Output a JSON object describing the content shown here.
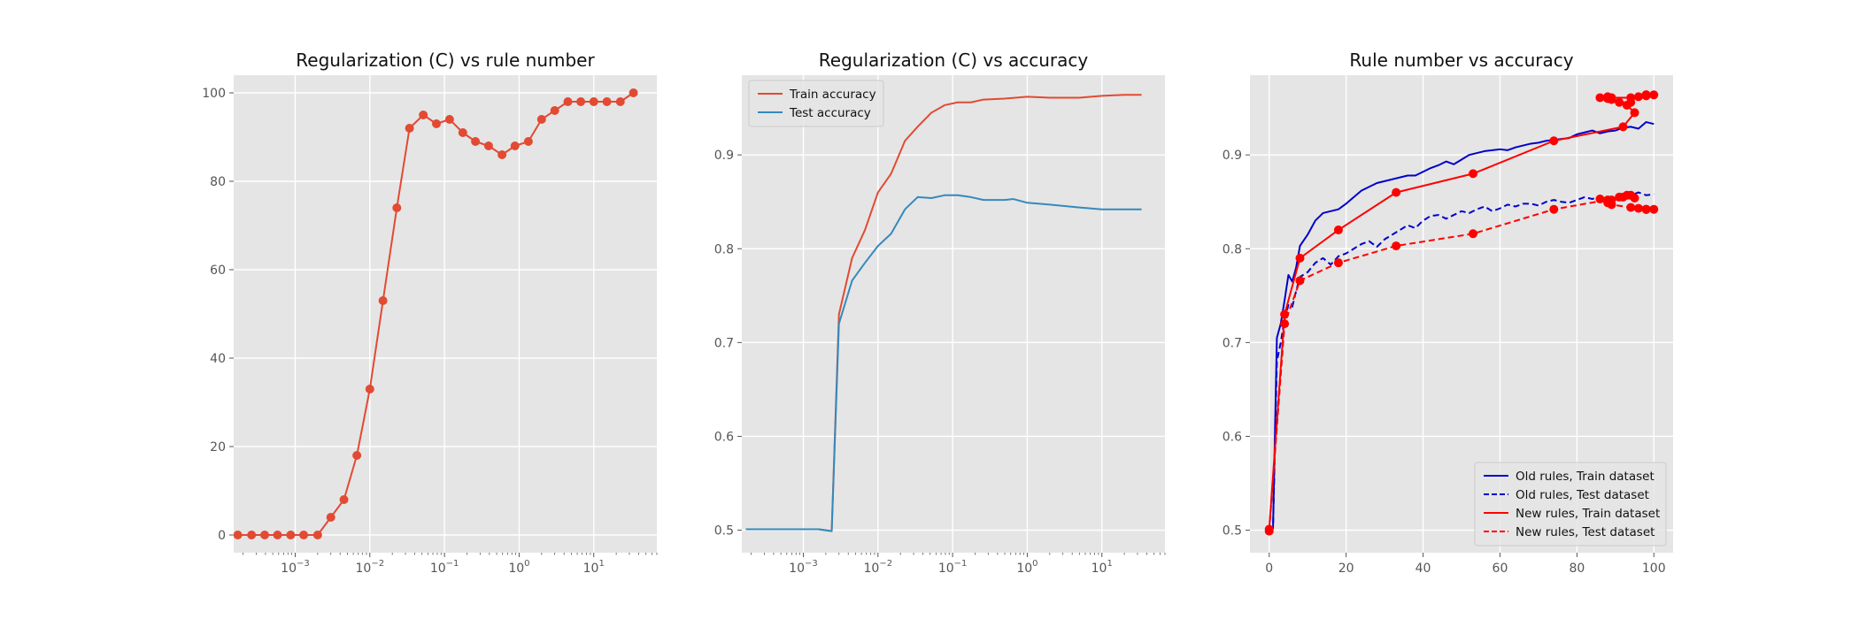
{
  "chart_data": [
    {
      "type": "line",
      "title": "Regularization (C) vs rule number",
      "xlabel": "",
      "ylabel": "",
      "xscale": "log",
      "x_ticks": [
        "10",
        "10",
        "10",
        "10",
        "10"
      ],
      "x_tick_exps": [
        "−3",
        "−2",
        "−1",
        "0",
        "1"
      ],
      "y_ticks": [
        "0",
        "20",
        "40",
        "60",
        "80",
        "100"
      ],
      "ylim": [
        -4,
        104
      ],
      "grid": true,
      "legend": "none",
      "series": [
        {
          "color": "#E24A33",
          "marker": "circle",
          "x": [
            0.00017,
            0.00026,
            0.00039,
            0.00058,
            0.00087,
            0.0013,
            0.002,
            0.003,
            0.0045,
            0.0067,
            0.01,
            0.015,
            0.023,
            0.034,
            0.052,
            0.078,
            0.117,
            0.176,
            0.26,
            0.39,
            0.59,
            0.88,
            1.33,
            2.0,
            3.0,
            4.5,
            6.7,
            10,
            15,
            22.7,
            34
          ],
          "y": [
            0,
            0,
            0,
            0,
            0,
            0,
            0,
            4,
            8,
            18,
            33,
            53,
            74,
            92,
            95,
            93,
            94,
            91,
            89,
            88,
            86,
            88,
            89,
            94,
            96,
            98,
            98,
            98,
            98,
            98,
            100
          ]
        }
      ]
    },
    {
      "type": "line",
      "title": "Regularization (C) vs accuracy",
      "xlabel": "",
      "ylabel": "",
      "xscale": "log",
      "x_ticks": [
        "10",
        "10",
        "10",
        "10",
        "10"
      ],
      "x_tick_exps": [
        "−3",
        "−2",
        "−1",
        "0",
        "1"
      ],
      "y_ticks": [
        "0.5",
        "0.6",
        "0.7",
        "0.8",
        "0.9"
      ],
      "ylim": [
        0.476,
        0.985
      ],
      "grid": true,
      "legend": "top-left",
      "series": [
        {
          "name": "Train accuracy",
          "color": "#E24A33",
          "x": [
            0.00017,
            0.001,
            0.0016,
            0.0024,
            0.003,
            0.0045,
            0.0067,
            0.01,
            0.015,
            0.023,
            0.034,
            0.052,
            0.078,
            0.117,
            0.176,
            0.26,
            0.5,
            1.0,
            2.0,
            5.0,
            10,
            20,
            34
          ],
          "y": [
            0.501,
            0.501,
            0.501,
            0.499,
            0.73,
            0.79,
            0.82,
            0.86,
            0.88,
            0.915,
            0.93,
            0.945,
            0.953,
            0.956,
            0.956,
            0.959,
            0.96,
            0.962,
            0.961,
            0.961,
            0.963,
            0.964,
            0.964
          ]
        },
        {
          "name": "Test accuracy",
          "color": "#348ABD",
          "x": [
            0.00017,
            0.001,
            0.0016,
            0.0024,
            0.003,
            0.0045,
            0.0067,
            0.01,
            0.015,
            0.023,
            0.034,
            0.052,
            0.078,
            0.117,
            0.176,
            0.26,
            0.5,
            0.65,
            1.0,
            2.0,
            5.0,
            10,
            34
          ],
          "y": [
            0.501,
            0.501,
            0.501,
            0.499,
            0.72,
            0.766,
            0.785,
            0.803,
            0.816,
            0.842,
            0.855,
            0.854,
            0.857,
            0.857,
            0.855,
            0.852,
            0.852,
            0.853,
            0.849,
            0.847,
            0.844,
            0.842,
            0.842
          ]
        }
      ]
    },
    {
      "type": "line",
      "title": "Rule number vs accuracy",
      "xlabel": "",
      "ylabel": "",
      "x_ticks": [
        "0",
        "20",
        "40",
        "60",
        "80",
        "100"
      ],
      "y_ticks": [
        "0.5",
        "0.6",
        "0.7",
        "0.8",
        "0.9"
      ],
      "xlim": [
        -5,
        105
      ],
      "ylim": [
        0.476,
        0.985
      ],
      "grid": true,
      "legend": "bottom-right",
      "series": [
        {
          "name": "Old rules, Train dataset",
          "color": "#0000CC",
          "style": "solid",
          "x": [
            0,
            1,
            2,
            3,
            4,
            5,
            6,
            7,
            8,
            10,
            12,
            14,
            16,
            18,
            20,
            22,
            24,
            26,
            28,
            30,
            32,
            34,
            36,
            38,
            40,
            42,
            44,
            46,
            48,
            50,
            52,
            54,
            56,
            58,
            60,
            62,
            64,
            66,
            68,
            70,
            72,
            74,
            76,
            78,
            80,
            82,
            84,
            86,
            88,
            90,
            92,
            94,
            96,
            98,
            100
          ],
          "y": [
            0.501,
            0.503,
            0.705,
            0.72,
            0.745,
            0.772,
            0.765,
            0.78,
            0.803,
            0.815,
            0.83,
            0.838,
            0.84,
            0.842,
            0.848,
            0.855,
            0.862,
            0.866,
            0.87,
            0.872,
            0.874,
            0.876,
            0.878,
            0.878,
            0.882,
            0.886,
            0.889,
            0.893,
            0.89,
            0.895,
            0.9,
            0.902,
            0.904,
            0.905,
            0.906,
            0.905,
            0.908,
            0.91,
            0.912,
            0.913,
            0.915,
            0.916,
            0.917,
            0.918,
            0.922,
            0.924,
            0.926,
            0.923,
            0.925,
            0.926,
            0.929,
            0.93,
            0.928,
            0.935,
            0.933
          ]
        },
        {
          "name": "Old rules, Test dataset",
          "color": "#0000CC",
          "style": "dashed",
          "x": [
            0,
            1,
            2,
            3,
            4,
            5,
            6,
            7,
            8,
            10,
            12,
            14,
            16,
            18,
            20,
            22,
            24,
            26,
            28,
            30,
            32,
            34,
            36,
            38,
            40,
            42,
            44,
            46,
            48,
            50,
            52,
            54,
            56,
            58,
            60,
            62,
            64,
            66,
            68,
            70,
            72,
            74,
            76,
            78,
            80,
            82,
            84,
            86,
            88,
            90,
            92,
            94,
            96,
            98,
            100
          ],
          "y": [
            0.499,
            0.502,
            0.68,
            0.7,
            0.725,
            0.74,
            0.738,
            0.755,
            0.77,
            0.775,
            0.785,
            0.79,
            0.783,
            0.792,
            0.795,
            0.8,
            0.805,
            0.808,
            0.802,
            0.81,
            0.815,
            0.82,
            0.825,
            0.822,
            0.83,
            0.835,
            0.836,
            0.832,
            0.836,
            0.84,
            0.838,
            0.842,
            0.845,
            0.84,
            0.843,
            0.847,
            0.845,
            0.848,
            0.848,
            0.846,
            0.85,
            0.852,
            0.85,
            0.849,
            0.852,
            0.855,
            0.853,
            0.856,
            0.854,
            0.855,
            0.858,
            0.857,
            0.86,
            0.857,
            0.858
          ]
        },
        {
          "name": "New rules, Train dataset",
          "color": "#FF0000",
          "style": "solid",
          "marker": "circle",
          "x": [
            0,
            4,
            8,
            18,
            33,
            53,
            74,
            92,
            95,
            93,
            94,
            91,
            89,
            88,
            86,
            88,
            89,
            94,
            96,
            98,
            98,
            98,
            98,
            98,
            100
          ],
          "y": [
            0.501,
            0.73,
            0.79,
            0.82,
            0.86,
            0.88,
            0.915,
            0.93,
            0.945,
            0.953,
            0.956,
            0.956,
            0.959,
            0.96,
            0.961,
            0.962,
            0.961,
            0.961,
            0.962,
            0.963,
            0.964,
            0.964,
            0.964,
            0.964,
            0.964
          ]
        },
        {
          "name": "New rules, Test dataset",
          "color": "#FF0000",
          "style": "dashed",
          "marker": "circle",
          "x": [
            0,
            4,
            8,
            18,
            33,
            53,
            74,
            92,
            95,
            93,
            94,
            91,
            89,
            88,
            86,
            88,
            89,
            94,
            96,
            98,
            98,
            98,
            98,
            98,
            100
          ],
          "y": [
            0.499,
            0.72,
            0.766,
            0.785,
            0.803,
            0.816,
            0.842,
            0.855,
            0.854,
            0.857,
            0.857,
            0.855,
            0.852,
            0.852,
            0.853,
            0.849,
            0.847,
            0.844,
            0.843,
            0.842,
            0.842,
            0.842,
            0.842,
            0.842,
            0.842
          ]
        }
      ]
    }
  ]
}
